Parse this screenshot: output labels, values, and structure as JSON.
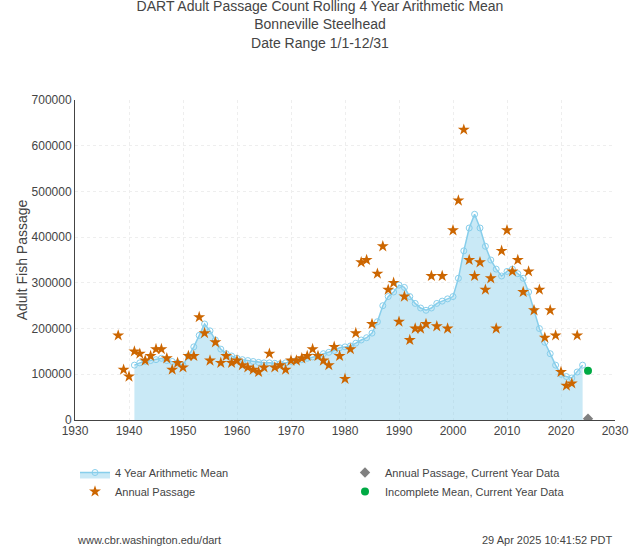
{
  "chart_data": {
    "type": "line",
    "title": "DART Adult Passage Count Rolling 4 Year Arithmetic Mean\nBonneville Steelhead\nDate Range 1/1-12/31",
    "ylabel": "Adult Fish Passage",
    "annotations": [
      "www.cbr.washington.edu/dart",
      "29 Apr 2025 10:41:52 PDT"
    ],
    "xlim": [
      1930,
      2030
    ],
    "ylim": [
      0,
      700000
    ],
    "xticks": [
      1930,
      1940,
      1950,
      1960,
      1970,
      1980,
      1990,
      2000,
      2010,
      2020,
      2030
    ],
    "yticks": [
      0,
      100000,
      200000,
      300000,
      400000,
      500000,
      600000,
      700000
    ],
    "grid": true,
    "legend": "bottom",
    "series": [
      {
        "name": "4 Year Arithmetic Mean",
        "type": "area",
        "color": "#87CEEB",
        "marker": "circle-open",
        "x": [
          1941,
          1942,
          1943,
          1944,
          1945,
          1946,
          1947,
          1948,
          1949,
          1950,
          1951,
          1952,
          1953,
          1954,
          1955,
          1956,
          1957,
          1958,
          1959,
          1960,
          1961,
          1962,
          1963,
          1964,
          1965,
          1966,
          1967,
          1968,
          1969,
          1970,
          1971,
          1972,
          1973,
          1974,
          1975,
          1976,
          1977,
          1978,
          1979,
          1980,
          1981,
          1982,
          1983,
          1984,
          1985,
          1986,
          1987,
          1988,
          1989,
          1990,
          1991,
          1992,
          1993,
          1994,
          1995,
          1996,
          1997,
          1998,
          1999,
          2000,
          2001,
          2002,
          2003,
          2004,
          2005,
          2006,
          2007,
          2008,
          2009,
          2010,
          2011,
          2012,
          2013,
          2014,
          2015,
          2016,
          2017,
          2018,
          2019,
          2020,
          2021,
          2022,
          2023,
          2024
        ],
        "values": [
          120000,
          125000,
          128000,
          130000,
          132000,
          135000,
          130000,
          128000,
          125000,
          120000,
          140000,
          160000,
          185000,
          210000,
          195000,
          175000,
          155000,
          145000,
          140000,
          135000,
          132000,
          130000,
          128000,
          126000,
          125000,
          125000,
          124000,
          123000,
          125000,
          128000,
          130000,
          132000,
          135000,
          138000,
          140000,
          145000,
          148000,
          152000,
          158000,
          160000,
          162000,
          168000,
          175000,
          180000,
          190000,
          215000,
          250000,
          270000,
          280000,
          295000,
          290000,
          270000,
          255000,
          245000,
          240000,
          245000,
          255000,
          260000,
          265000,
          270000,
          310000,
          370000,
          420000,
          450000,
          420000,
          380000,
          350000,
          330000,
          315000,
          325000,
          330000,
          320000,
          310000,
          280000,
          240000,
          200000,
          170000,
          145000,
          120000,
          100000,
          95000,
          92000,
          105000,
          120000
        ]
      },
      {
        "name": "Annual Passage, Current Year Data",
        "type": "scatter",
        "color": "#808080",
        "marker": "diamond",
        "x": [
          2025
        ],
        "values": [
          3000
        ]
      },
      {
        "name": "Annual Passage",
        "type": "scatter",
        "color": "#CC6600",
        "marker": "star",
        "x": [
          1938,
          1939,
          1940,
          1941,
          1942,
          1943,
          1944,
          1945,
          1946,
          1947,
          1948,
          1949,
          1950,
          1951,
          1952,
          1953,
          1954,
          1955,
          1956,
          1957,
          1958,
          1959,
          1960,
          1961,
          1962,
          1963,
          1964,
          1965,
          1966,
          1967,
          1968,
          1969,
          1970,
          1971,
          1972,
          1973,
          1974,
          1975,
          1976,
          1977,
          1978,
          1979,
          1980,
          1981,
          1982,
          1983,
          1984,
          1985,
          1986,
          1987,
          1988,
          1989,
          1990,
          1991,
          1992,
          1993,
          1994,
          1995,
          1996,
          1997,
          1998,
          1999,
          2000,
          2001,
          2002,
          2003,
          2004,
          2005,
          2006,
          2007,
          2008,
          2009,
          2010,
          2011,
          2012,
          2013,
          2014,
          2015,
          2016,
          2017,
          2018,
          2019,
          2020,
          2021,
          2022,
          2023
        ],
        "values": [
          185000,
          110000,
          95000,
          150000,
          145000,
          130000,
          140000,
          155000,
          155000,
          135000,
          110000,
          125000,
          115000,
          140000,
          140000,
          225000,
          190000,
          130000,
          170000,
          125000,
          140000,
          125000,
          130000,
          120000,
          115000,
          110000,
          105000,
          115000,
          145000,
          115000,
          120000,
          110000,
          130000,
          130000,
          135000,
          140000,
          155000,
          140000,
          130000,
          120000,
          160000,
          140000,
          90000,
          155000,
          190000,
          345000,
          350000,
          210000,
          320000,
          380000,
          285000,
          300000,
          215000,
          270000,
          175000,
          200000,
          200000,
          210000,
          315000,
          205000,
          315000,
          200000,
          415000,
          480000,
          635000,
          350000,
          315000,
          345000,
          285000,
          310000,
          200000,
          370000,
          415000,
          325000,
          350000,
          280000,
          325000,
          240000,
          285000,
          180000,
          240000,
          185000,
          105000,
          75000,
          80000,
          185000
        ]
      },
      {
        "name": "Incomplete Mean, Current Year Data",
        "type": "scatter",
        "color": "#00AA44",
        "marker": "circle",
        "x": [
          2025
        ],
        "values": [
          108000
        ]
      }
    ]
  }
}
